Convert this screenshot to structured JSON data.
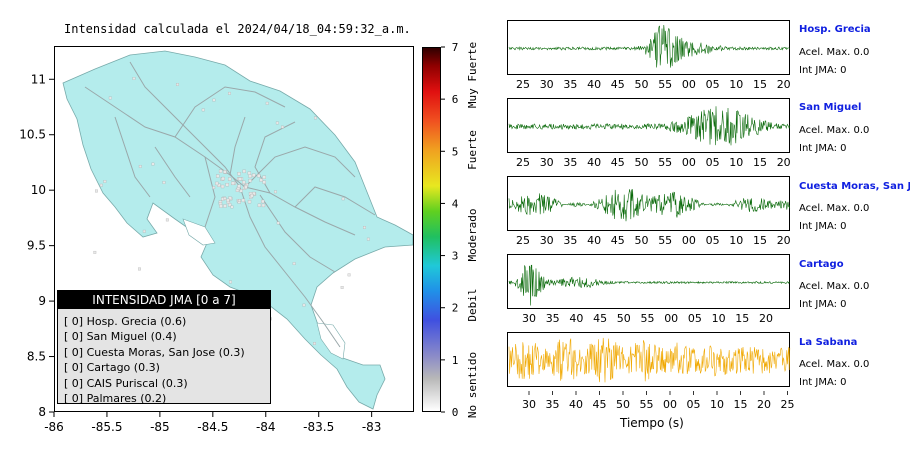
{
  "map": {
    "title": "Intensidad calculada el 2024/04/18_04:59:32_a.m.",
    "lat_ticks": [
      "11",
      "10.5",
      "10",
      "9.5",
      "9",
      "8.5",
      "8"
    ],
    "lon_ticks": [
      "-86",
      "-85.5",
      "-85",
      "-84.5",
      "-84",
      "-83.5",
      "-83"
    ],
    "colors": {
      "land": "#b4ecec",
      "roads": "#9aa8aa",
      "stations": "#e8e8e8"
    }
  },
  "legend": {
    "title": "INTENSIDAD JMA [0 a 7]",
    "items": [
      "[ 0]  Hosp. Grecia (0.6)",
      "[ 0]  San Miguel (0.4)",
      "[ 0]  Cuesta Moras, San Jose (0.3)",
      "[ 0]  Cartago (0.3)",
      "[ 0]  CAIS Puriscal (0.3)",
      "[ 0]  Palmares (0.2)"
    ]
  },
  "colorbar": {
    "ticks": [
      "0",
      "1",
      "2",
      "3",
      "4",
      "5",
      "6",
      "7"
    ],
    "categories": [
      "No sentido",
      "Debil",
      "Moderado",
      "Fuerte",
      "Muy Fuerte"
    ]
  },
  "stations": [
    {
      "name": "Hosp. Grecia",
      "acel": "Acel. Max. 0.0",
      "int": "Int JMA: 0",
      "ticks": [
        "25",
        "30",
        "35",
        "40",
        "45",
        "50",
        "55",
        "00",
        "05",
        "10",
        "15",
        "20"
      ],
      "color": "#0a6a0a"
    },
    {
      "name": "San Miguel",
      "acel": "Acel. Max. 0.0",
      "int": "Int JMA: 0",
      "ticks": [
        "25",
        "30",
        "35",
        "40",
        "45",
        "50",
        "55",
        "00",
        "05",
        "10",
        "15",
        "20"
      ],
      "color": "#0a6a0a"
    },
    {
      "name": "Cuesta Moras, San Jose",
      "acel": "Acel. Max. 0.0",
      "int": "Int JMA: 0",
      "ticks": [
        "25",
        "30",
        "35",
        "40",
        "45",
        "50",
        "55",
        "00",
        "05",
        "10",
        "15",
        "20"
      ],
      "color": "#0a6a0a"
    },
    {
      "name": "Cartago",
      "acel": "Acel. Max. 0.0",
      "int": "Int JMA: 0",
      "ticks": [
        "30",
        "35",
        "40",
        "45",
        "50",
        "55",
        "00",
        "05",
        "10",
        "15",
        "20"
      ],
      "color": "#0a6a0a"
    },
    {
      "name": "La Sabana",
      "acel": "Acel. Max. 0.0",
      "int": "Int JMA: 0",
      "ticks": [
        "30",
        "35",
        "40",
        "45",
        "50",
        "55",
        "00",
        "05",
        "10",
        "15",
        "20",
        "25"
      ],
      "color": "#f0a800"
    }
  ],
  "time_axis_label": "Tiempo (s)",
  "chart_data": [
    {
      "type": "heatmap",
      "title": "Intensidad calculada el 2024/04/18_04:59:32_a.m.",
      "xlabel": "",
      "ylabel": "",
      "xlim": [
        -86,
        -82.6
      ],
      "ylim": [
        8,
        11.3
      ],
      "colorbar_range": [
        0,
        7
      ],
      "legend": "bottom-left",
      "values": [
        {
          "station": "Hosp. Grecia",
          "jma": 0,
          "value": 0.6
        },
        {
          "station": "San Miguel",
          "jma": 0,
          "value": 0.4
        },
        {
          "station": "Cuesta Moras, San Jose",
          "jma": 0,
          "value": 0.3
        },
        {
          "station": "Cartago",
          "jma": 0,
          "value": 0.3
        },
        {
          "station": "CAIS Puriscal",
          "jma": 0,
          "value": 0.3
        },
        {
          "station": "Palmares",
          "jma": 0,
          "value": 0.2
        }
      ]
    },
    {
      "type": "line",
      "xlabel": "Tiempo (s)",
      "series": [
        {
          "name": "Hosp. Grecia",
          "acel_max": 0.0,
          "int_jma": 0,
          "peak_window": [
            "50",
            "55"
          ]
        },
        {
          "name": "San Miguel",
          "acel_max": 0.0,
          "int_jma": 0,
          "peak_window": [
            "00",
            "15"
          ]
        },
        {
          "name": "Cuesta Moras, San Jose",
          "acel_max": 0.0,
          "int_jma": 0,
          "peak_window": [
            "40",
            "50"
          ]
        },
        {
          "name": "Cartago",
          "acel_max": 0.0,
          "int_jma": 0,
          "peak_window": [
            "30",
            "35"
          ]
        },
        {
          "name": "La Sabana",
          "acel_max": 0.0,
          "int_jma": 0,
          "peak_window": [
            "30",
            "25"
          ]
        }
      ]
    }
  ]
}
